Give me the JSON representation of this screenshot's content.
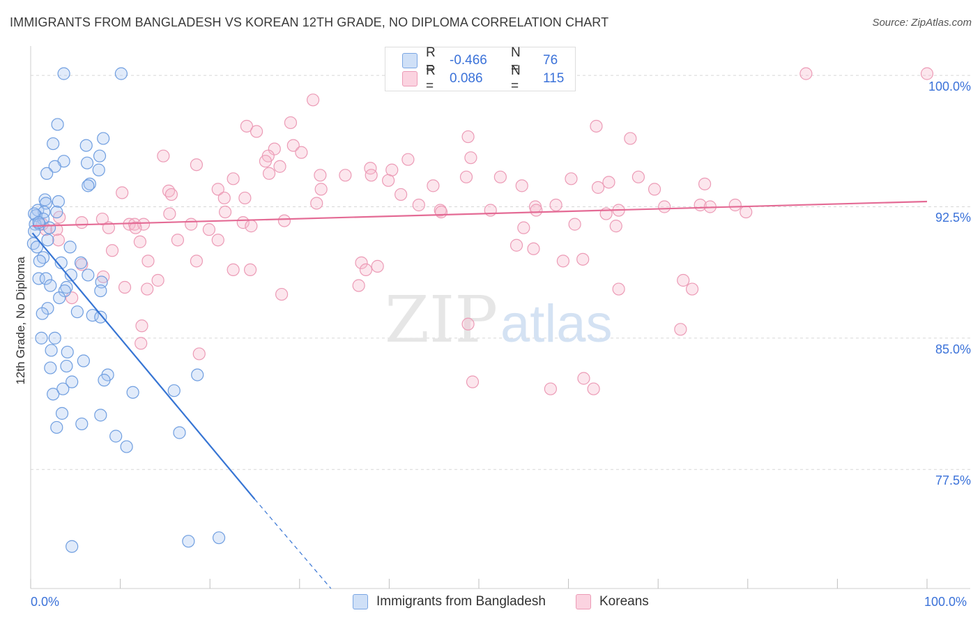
{
  "header": {
    "title": "IMMIGRANTS FROM BANGLADESH VS KOREAN 12TH GRADE, NO DIPLOMA CORRELATION CHART",
    "source": "Source: ZipAtlas.com"
  },
  "watermark": {
    "part1": "ZIP",
    "part2": "atlas"
  },
  "legend": {
    "rows": [
      {
        "r_label": "R =",
        "r_value": "-0.466",
        "n_label": "N =",
        "n_value": "76",
        "color": "#a9c6f0",
        "stroke": "#6f9ee0"
      },
      {
        "r_label": "R =",
        "r_value": "0.086",
        "n_label": "N =",
        "n_value": "115",
        "color": "#f6b7cb",
        "stroke": "#e88aa8"
      }
    ]
  },
  "bottom_legend": [
    {
      "label": "Immigrants from Bangladesh",
      "color": "#a9c6f0",
      "stroke": "#6f9ee0"
    },
    {
      "label": "Koreans",
      "color": "#f6b7cb",
      "stroke": "#e88aa8"
    }
  ],
  "colors": {
    "blue_line": "#3775d4",
    "pink_line": "#e46b95",
    "grid": "#d7d7d7",
    "axis_text": "#3b72d9"
  },
  "chart_data": {
    "type": "scatter",
    "title": "IMMIGRANTS FROM BANGLADESH VS KOREAN 12TH GRADE, NO DIPLOMA CORRELATION CHART",
    "xlabel": "",
    "ylabel": "12th Grade, No Diploma",
    "xlim": [
      0,
      100
    ],
    "ylim": [
      70.7,
      101.2
    ],
    "x_tick_labels": [
      "0.0%",
      "100.0%"
    ],
    "y_ticks": [
      77.5,
      85.0,
      92.5,
      100.0
    ],
    "y_tick_labels": [
      "77.5%",
      "85.0%",
      "92.5%",
      "100.0%"
    ],
    "grid": true,
    "legend_position": "top-center",
    "series": [
      {
        "name": "Immigrants from Bangladesh",
        "r": -0.466,
        "n": 76,
        "trend": {
          "x": [
            0.2,
            25.0
          ],
          "y": [
            91.0,
            75.8
          ],
          "dashed_to": [
            33.5,
            70.7
          ]
        },
        "points": [
          [
            3.7,
            100.1
          ],
          [
            10.1,
            100.1
          ],
          [
            3.0,
            97.2
          ],
          [
            8.1,
            96.4
          ],
          [
            2.5,
            96.1
          ],
          [
            6.2,
            96.0
          ],
          [
            7.7,
            95.4
          ],
          [
            3.7,
            95.1
          ],
          [
            6.3,
            95.0
          ],
          [
            2.7,
            94.8
          ],
          [
            7.6,
            94.6
          ],
          [
            1.8,
            94.4
          ],
          [
            6.6,
            93.8
          ],
          [
            6.4,
            93.7
          ],
          [
            1.6,
            92.9
          ],
          [
            3.1,
            92.8
          ],
          [
            1.7,
            92.7
          ],
          [
            0.8,
            92.3
          ],
          [
            1.5,
            92.2
          ],
          [
            2.9,
            92.2
          ],
          [
            0.6,
            92.0
          ],
          [
            1.4,
            91.8
          ],
          [
            0.5,
            91.5
          ],
          [
            1.0,
            91.5
          ],
          [
            2.1,
            91.3
          ],
          [
            0.4,
            91.1
          ],
          [
            1.9,
            90.6
          ],
          [
            0.3,
            90.4
          ],
          [
            0.7,
            90.2
          ],
          [
            4.4,
            90.2
          ],
          [
            1.4,
            89.6
          ],
          [
            1.0,
            89.4
          ],
          [
            3.4,
            89.3
          ],
          [
            5.6,
            89.3
          ],
          [
            4.5,
            88.6
          ],
          [
            6.4,
            88.6
          ],
          [
            0.9,
            88.4
          ],
          [
            1.7,
            88.4
          ],
          [
            7.9,
            88.2
          ],
          [
            2.2,
            88.0
          ],
          [
            4.0,
            87.9
          ],
          [
            3.8,
            87.7
          ],
          [
            7.8,
            87.7
          ],
          [
            3.2,
            87.3
          ],
          [
            1.9,
            86.7
          ],
          [
            5.2,
            86.5
          ],
          [
            1.3,
            86.4
          ],
          [
            6.9,
            86.3
          ],
          [
            7.8,
            86.2
          ],
          [
            1.2,
            85.0
          ],
          [
            2.7,
            85.0
          ],
          [
            2.3,
            84.3
          ],
          [
            4.1,
            84.2
          ],
          [
            5.9,
            83.7
          ],
          [
            2.2,
            83.3
          ],
          [
            4.0,
            83.4
          ],
          [
            8.6,
            82.9
          ],
          [
            18.6,
            82.9
          ],
          [
            8.2,
            82.6
          ],
          [
            4.6,
            82.5
          ],
          [
            3.6,
            82.1
          ],
          [
            16.0,
            82.0
          ],
          [
            2.5,
            81.8
          ],
          [
            11.4,
            81.9
          ],
          [
            3.5,
            80.7
          ],
          [
            7.8,
            80.6
          ],
          [
            5.7,
            80.1
          ],
          [
            2.9,
            79.9
          ],
          [
            16.6,
            79.6
          ],
          [
            9.5,
            79.4
          ],
          [
            10.7,
            78.8
          ],
          [
            21.0,
            73.6
          ],
          [
            17.6,
            73.4
          ],
          [
            4.6,
            73.1
          ],
          [
            0.4,
            92.1
          ],
          [
            0.9,
            91.6
          ]
        ]
      },
      {
        "name": "Koreans",
        "r": 0.086,
        "n": 115,
        "trend": {
          "x": [
            0.2,
            100.0
          ],
          "y": [
            91.4,
            92.8
          ]
        },
        "points": [
          [
            40.8,
            100.1
          ],
          [
            86.5,
            100.1
          ],
          [
            100.0,
            100.1
          ],
          [
            31.5,
            98.6
          ],
          [
            29.0,
            97.3
          ],
          [
            24.1,
            97.1
          ],
          [
            25.2,
            96.8
          ],
          [
            48.8,
            96.5
          ],
          [
            63.1,
            97.1
          ],
          [
            66.9,
            96.4
          ],
          [
            29.3,
            96.0
          ],
          [
            27.2,
            95.8
          ],
          [
            30.2,
            95.6
          ],
          [
            26.5,
            95.4
          ],
          [
            14.8,
            95.4
          ],
          [
            49.1,
            95.3
          ],
          [
            42.1,
            95.2
          ],
          [
            26.2,
            95.1
          ],
          [
            18.5,
            94.9
          ],
          [
            27.8,
            94.8
          ],
          [
            37.9,
            94.7
          ],
          [
            40.3,
            94.6
          ],
          [
            38.0,
            94.3
          ],
          [
            26.6,
            94.4
          ],
          [
            32.3,
            94.3
          ],
          [
            35.1,
            94.3
          ],
          [
            22.6,
            94.1
          ],
          [
            39.9,
            94.0
          ],
          [
            48.6,
            94.2
          ],
          [
            60.3,
            94.1
          ],
          [
            52.4,
            94.2
          ],
          [
            64.5,
            93.9
          ],
          [
            67.8,
            94.2
          ],
          [
            75.2,
            93.8
          ],
          [
            54.8,
            93.7
          ],
          [
            44.9,
            93.7
          ],
          [
            63.3,
            93.6
          ],
          [
            69.6,
            93.5
          ],
          [
            20.9,
            93.5
          ],
          [
            32.4,
            93.5
          ],
          [
            15.4,
            93.4
          ],
          [
            41.3,
            93.2
          ],
          [
            10.2,
            93.3
          ],
          [
            15.7,
            93.2
          ],
          [
            21.6,
            93.0
          ],
          [
            23.9,
            93.0
          ],
          [
            43.3,
            92.6
          ],
          [
            31.9,
            92.7
          ],
          [
            58.6,
            92.6
          ],
          [
            56.3,
            92.5
          ],
          [
            45.7,
            92.3
          ],
          [
            65.6,
            92.3
          ],
          [
            70.7,
            92.5
          ],
          [
            74.7,
            92.6
          ],
          [
            78.6,
            92.6
          ],
          [
            75.8,
            92.5
          ],
          [
            56.4,
            92.3
          ],
          [
            15.5,
            92.1
          ],
          [
            21.7,
            92.2
          ],
          [
            45.8,
            92.2
          ],
          [
            64.2,
            92.1
          ],
          [
            51.3,
            92.3
          ],
          [
            79.8,
            92.2
          ],
          [
            8.0,
            91.8
          ],
          [
            5.7,
            91.6
          ],
          [
            11.0,
            91.5
          ],
          [
            17.9,
            91.5
          ],
          [
            11.6,
            91.5
          ],
          [
            28.3,
            91.7
          ],
          [
            23.7,
            91.6
          ],
          [
            3.2,
            91.9
          ],
          [
            1.7,
            91.2
          ],
          [
            12.6,
            91.5
          ],
          [
            24.6,
            91.4
          ],
          [
            60.7,
            91.5
          ],
          [
            65.3,
            91.4
          ],
          [
            2.9,
            91.2
          ],
          [
            1.3,
            91.5
          ],
          [
            19.9,
            91.2
          ],
          [
            55.0,
            91.3
          ],
          [
            8.7,
            91.3
          ],
          [
            11.7,
            91.3
          ],
          [
            3.1,
            90.6
          ],
          [
            12.2,
            90.5
          ],
          [
            16.4,
            90.6
          ],
          [
            20.9,
            90.6
          ],
          [
            56.1,
            90.1
          ],
          [
            54.2,
            90.3
          ],
          [
            9.1,
            90.0
          ],
          [
            18.5,
            89.4
          ],
          [
            5.7,
            89.2
          ],
          [
            13.1,
            89.4
          ],
          [
            22.6,
            88.9
          ],
          [
            24.5,
            88.9
          ],
          [
            36.9,
            89.3
          ],
          [
            38.7,
            89.1
          ],
          [
            37.4,
            88.9
          ],
          [
            61.6,
            89.5
          ],
          [
            59.4,
            89.4
          ],
          [
            8.1,
            88.5
          ],
          [
            14.2,
            88.3
          ],
          [
            10.5,
            87.9
          ],
          [
            13.0,
            87.8
          ],
          [
            28.0,
            87.5
          ],
          [
            36.6,
            88.0
          ],
          [
            65.6,
            87.8
          ],
          [
            73.8,
            87.8
          ],
          [
            72.8,
            88.3
          ],
          [
            4.6,
            87.3
          ],
          [
            12.4,
            85.7
          ],
          [
            48.8,
            85.8
          ],
          [
            72.5,
            85.5
          ],
          [
            12.3,
            84.7
          ],
          [
            18.8,
            84.1
          ],
          [
            49.3,
            82.5
          ],
          [
            61.7,
            82.7
          ],
          [
            58.0,
            82.1
          ],
          [
            62.8,
            82.1
          ]
        ]
      }
    ]
  }
}
